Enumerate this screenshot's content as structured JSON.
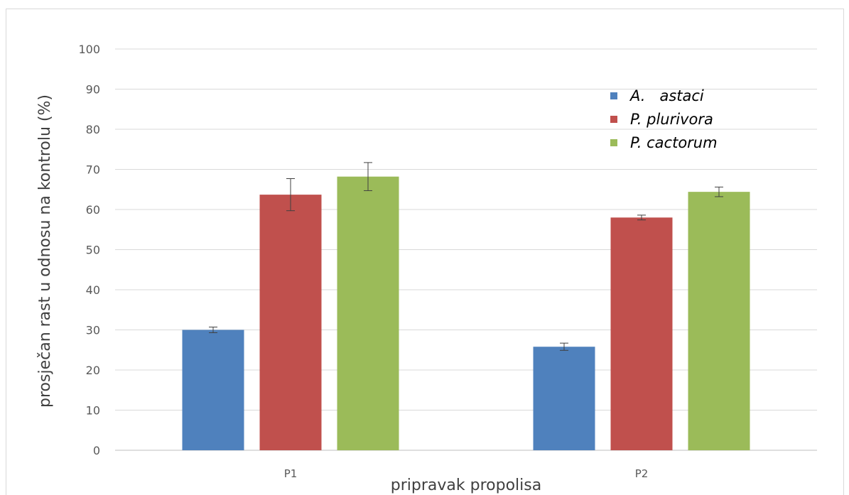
{
  "chart_data": {
    "type": "bar",
    "title": "",
    "xlabel": "pripravak propolisa",
    "ylabel": "prosječan rast u odnosu na kontrolu (%)",
    "ylim": [
      0,
      100
    ],
    "yticks": [
      0,
      10,
      20,
      30,
      40,
      50,
      60,
      70,
      80,
      90,
      100
    ],
    "categories": [
      "P1",
      "P2"
    ],
    "grid": true,
    "legend_position": "top-right",
    "series": [
      {
        "name": "A.   astaci",
        "color": "#4f81bd",
        "values": [
          30,
          25.8
        ],
        "error": [
          0.7,
          0.9
        ]
      },
      {
        "name": "P. plurivora",
        "color": "#c0504d",
        "values": [
          63.7,
          58
        ],
        "error": [
          4.0,
          0.6
        ]
      },
      {
        "name": "P. cactorum",
        "color": "#9bbb59",
        "values": [
          68.2,
          64.4
        ],
        "error": [
          3.5,
          1.2
        ]
      }
    ]
  }
}
